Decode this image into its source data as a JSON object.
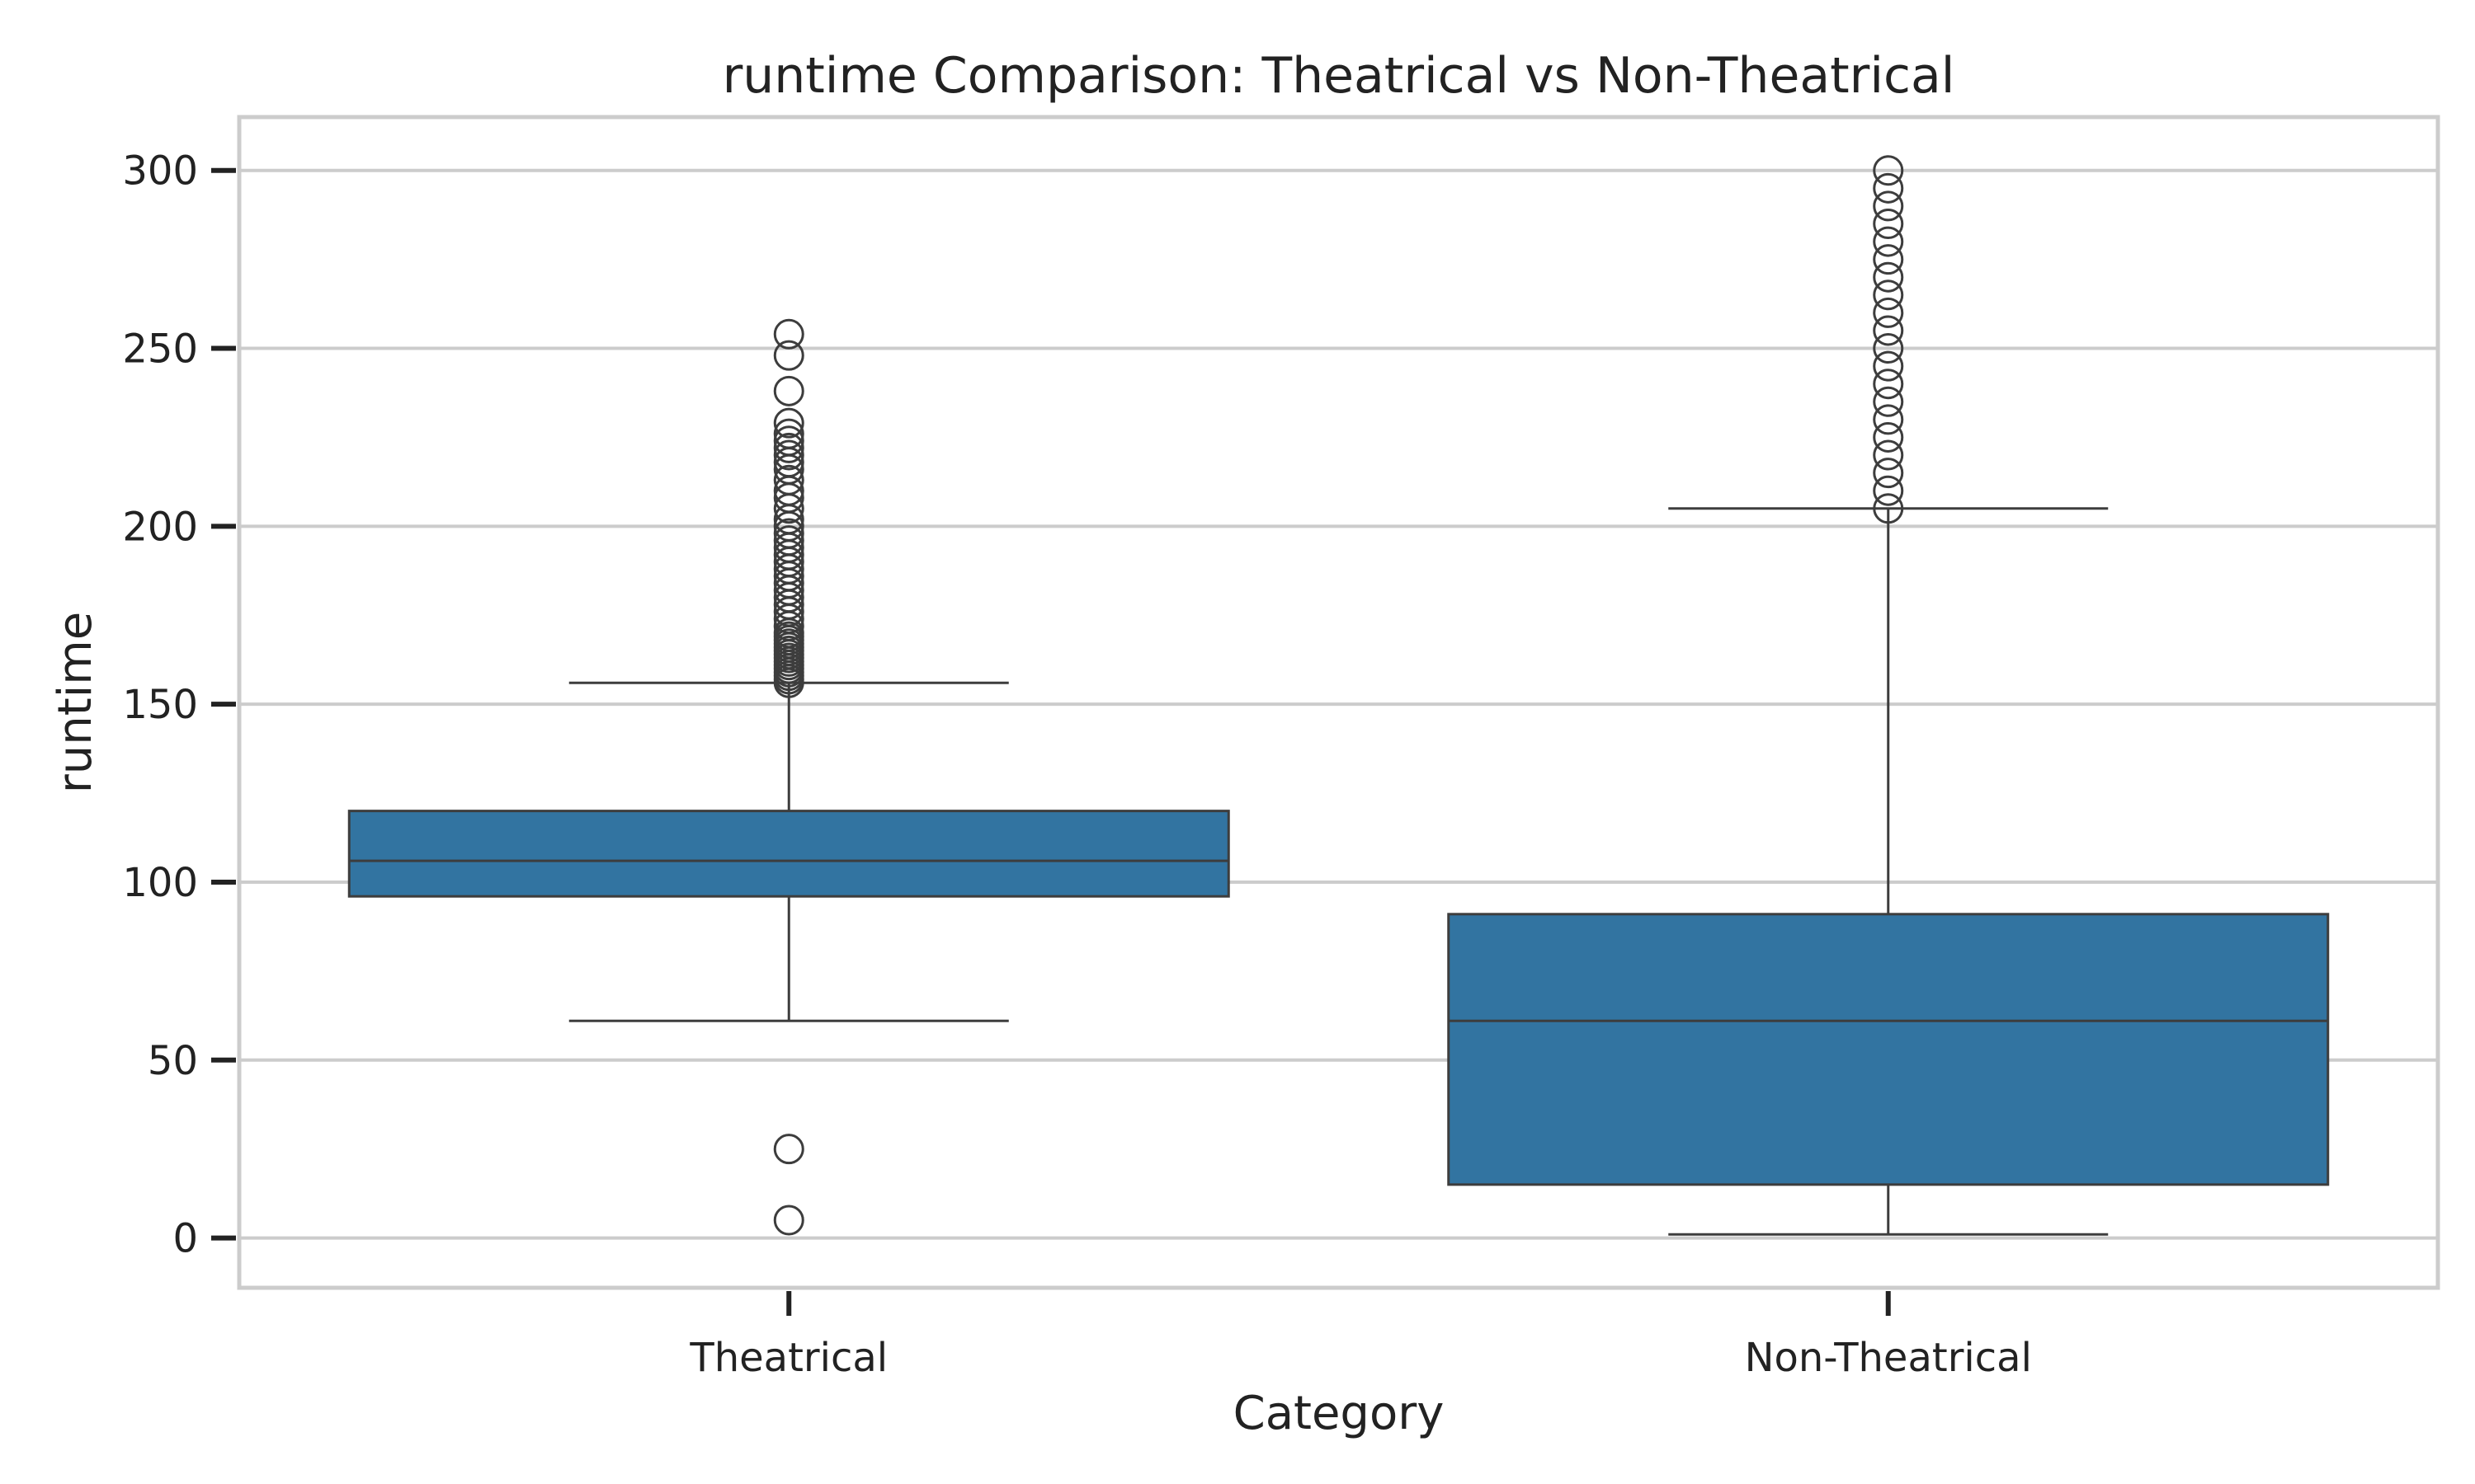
{
  "chart_data": {
    "type": "box",
    "title": "runtime Comparison: Theatrical vs Non-Theatrical",
    "xlabel": "Category",
    "ylabel": "runtime",
    "ylim": [
      -14,
      315
    ],
    "yticks": [
      0,
      50,
      100,
      150,
      200,
      250,
      300
    ],
    "grid": true,
    "categories": [
      "Theatrical",
      "Non-Theatrical"
    ],
    "boxes": [
      {
        "category": "Theatrical",
        "whisker_low": 61,
        "q1": 96,
        "median": 106,
        "q3": 120,
        "whisker_high": 156,
        "outliers": [
          5,
          25,
          156,
          157,
          158,
          159,
          160,
          161,
          162,
          163,
          164,
          165,
          166,
          167,
          168,
          169,
          170,
          172,
          174,
          176,
          178,
          180,
          182,
          184,
          186,
          188,
          190,
          192,
          194,
          196,
          198,
          200,
          202,
          205,
          208,
          210,
          213,
          216,
          218,
          220,
          222,
          224,
          226,
          229,
          238,
          248,
          254
        ]
      },
      {
        "category": "Non-Theatrical",
        "whisker_low": 1,
        "q1": 15,
        "median": 61,
        "q3": 91,
        "whisker_high": 205,
        "outliers": [
          205,
          210,
          215,
          220,
          225,
          230,
          235,
          240,
          245,
          250,
          255,
          260,
          265,
          270,
          275,
          280,
          285,
          290,
          295,
          300
        ]
      }
    ],
    "colors": {
      "box_fill": "#3274a1",
      "line": "#3d3d3d",
      "grid": "#cccccc",
      "frame": "#cccccc"
    }
  }
}
